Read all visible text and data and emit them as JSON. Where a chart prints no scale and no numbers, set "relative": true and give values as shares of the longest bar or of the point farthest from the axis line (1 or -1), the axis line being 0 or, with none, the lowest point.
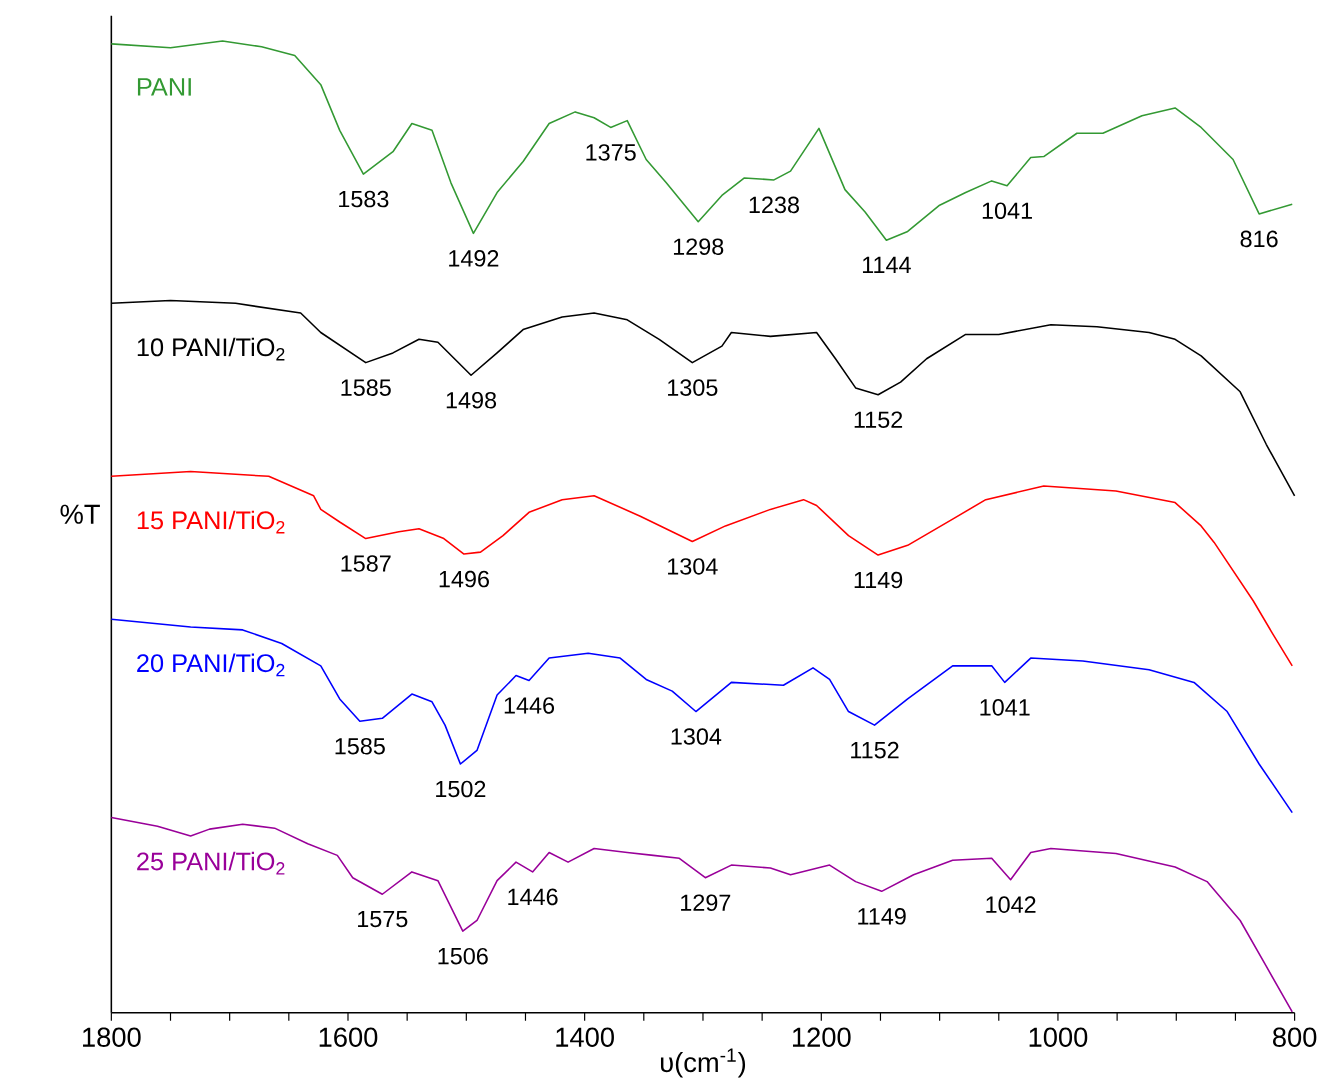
{
  "chart_data": {
    "type": "line",
    "xlabel": "υ(cm$^{-1}$)",
    "ylabel": "%T",
    "relative": true,
    "xlim": [
      1800,
      800
    ],
    "xticks": [
      1800,
      {
        "value": 1750,
        "label": null
      },
      {
        "value": 1700,
        "label": null
      },
      {
        "value": 1650,
        "label": null
      },
      1600,
      {
        "value": 1550,
        "label": null
      },
      {
        "value": 1500,
        "label": null
      },
      {
        "value": 1450,
        "label": null
      },
      1400,
      {
        "value": 1350,
        "label": null
      },
      {
        "value": 1300,
        "label": null
      },
      {
        "value": 1250,
        "label": null
      },
      1200,
      {
        "value": 1150,
        "label": null
      },
      {
        "value": 1100,
        "label": null
      },
      {
        "value": 1050,
        "label": null
      },
      1000,
      {
        "value": 950,
        "label": null
      },
      {
        "value": 900,
        "label": null
      },
      {
        "value": 850,
        "label": null
      },
      800
    ],
    "grid": false,
    "marker": "none",
    "line_style": "solid",
    "series": [
      {
        "name": "PANI",
        "color": "#339933",
        "x": [
          1800,
          1750,
          1706,
          1673,
          1645,
          1623,
          1607,
          1587,
          1562,
          1546,
          1529,
          1513,
          1494,
          1474,
          1452,
          1430,
          1408,
          1392,
          1378,
          1364,
          1348,
          1331,
          1304,
          1284,
          1265,
          1240,
          1226,
          1202,
          1180,
          1163,
          1145,
          1127,
          1100,
          1078,
          1056,
          1043,
          1023,
          1012,
          984,
          962,
          929,
          901,
          879,
          852,
          830,
          802
        ],
        "values": [
          0.997,
          0.993,
          1,
          0.994,
          0.985,
          0.955,
          0.908,
          0.863,
          0.886,
          0.915,
          0.908,
          0.854,
          0.802,
          0.844,
          0.876,
          0.915,
          0.927,
          0.921,
          0.911,
          0.918,
          0.878,
          0.854,
          0.814,
          0.841,
          0.859,
          0.857,
          0.866,
          0.91,
          0.847,
          0.824,
          0.795,
          0.804,
          0.831,
          0.844,
          0.856,
          0.851,
          0.88,
          0.881,
          0.905,
          0.905,
          0.923,
          0.931,
          0.911,
          0.878,
          0.822,
          0.832
        ]
      },
      {
        "name": "10 PANI/TiO$_{2}$",
        "color": "#000000",
        "x": [
          1800,
          1750,
          1695,
          1640,
          1623,
          1585,
          1562,
          1540,
          1524,
          1496,
          1474,
          1452,
          1419,
          1392,
          1364,
          1337,
          1309,
          1284,
          1276,
          1243,
          1204,
          1188,
          1171,
          1152,
          1133,
          1111,
          1078,
          1050,
          1006,
          967,
          923,
          901,
          879,
          846,
          824,
          800
        ],
        "values": [
          0.73,
          0.733,
          0.73,
          0.72,
          0.7,
          0.669,
          0.679,
          0.693,
          0.69,
          0.656,
          0.679,
          0.703,
          0.716,
          0.72,
          0.713,
          0.693,
          0.669,
          0.686,
          0.7,
          0.696,
          0.7,
          0.673,
          0.643,
          0.636,
          0.649,
          0.673,
          0.698,
          0.698,
          0.708,
          0.706,
          0.7,
          0.693,
          0.676,
          0.639,
          0.585,
          0.532
        ]
      },
      {
        "name": "15 PANI/TiO$_{2}$",
        "color": "#ff0000",
        "x": [
          1800,
          1733,
          1667,
          1629,
          1623,
          1607,
          1585,
          1557,
          1540,
          1519,
          1502,
          1488,
          1469,
          1447,
          1419,
          1392,
          1353,
          1309,
          1281,
          1243,
          1215,
          1204,
          1177,
          1152,
          1127,
          1089,
          1061,
          1012,
          951,
          901,
          879,
          868,
          835,
          819,
          802
        ],
        "values": [
          0.552,
          0.557,
          0.552,
          0.532,
          0.518,
          0.505,
          0.488,
          0.495,
          0.498,
          0.488,
          0.472,
          0.474,
          0.491,
          0.515,
          0.528,
          0.532,
          0.511,
          0.485,
          0.501,
          0.518,
          0.528,
          0.522,
          0.491,
          0.471,
          0.481,
          0.508,
          0.528,
          0.542,
          0.537,
          0.525,
          0.501,
          0.484,
          0.424,
          0.391,
          0.357
        ]
      },
      {
        "name": "20 PANI/TiO$_{2}$",
        "color": "#0000ff",
        "x": [
          1800,
          1733,
          1689,
          1656,
          1623,
          1607,
          1590,
          1571,
          1546,
          1529,
          1518,
          1505,
          1491,
          1474,
          1458,
          1447,
          1430,
          1397,
          1370,
          1348,
          1326,
          1306,
          1276,
          1232,
          1207,
          1193,
          1177,
          1155,
          1127,
          1089,
          1056,
          1045,
          1023,
          979,
          923,
          885,
          857,
          830,
          802
        ],
        "values": [
          0.405,
          0.397,
          0.394,
          0.38,
          0.357,
          0.323,
          0.3,
          0.303,
          0.328,
          0.32,
          0.296,
          0.256,
          0.27,
          0.327,
          0.347,
          0.342,
          0.365,
          0.37,
          0.365,
          0.343,
          0.331,
          0.31,
          0.34,
          0.337,
          0.355,
          0.343,
          0.31,
          0.296,
          0.323,
          0.357,
          0.357,
          0.34,
          0.365,
          0.362,
          0.353,
          0.34,
          0.31,
          0.256,
          0.206
        ]
      },
      {
        "name": "25 PANI/TiO$_{2}$",
        "color": "#990099",
        "x": [
          1800,
          1761,
          1733,
          1717,
          1689,
          1662,
          1634,
          1609,
          1596,
          1571,
          1546,
          1524,
          1503,
          1491,
          1474,
          1458,
          1444,
          1430,
          1414,
          1392,
          1364,
          1342,
          1320,
          1298,
          1276,
          1243,
          1226,
          1193,
          1171,
          1149,
          1122,
          1089,
          1056,
          1040,
          1023,
          1006,
          951,
          901,
          874,
          846,
          824,
          802
        ],
        "values": [
          0.201,
          0.192,
          0.182,
          0.189,
          0.194,
          0.19,
          0.174,
          0.162,
          0.139,
          0.122,
          0.145,
          0.136,
          0.084,
          0.095,
          0.136,
          0.155,
          0.145,
          0.165,
          0.155,
          0.169,
          0.165,
          0.162,
          0.159,
          0.139,
          0.152,
          0.149,
          0.142,
          0.152,
          0.135,
          0.125,
          0.142,
          0.157,
          0.159,
          0.137,
          0.165,
          0.169,
          0.164,
          0.15,
          0.135,
          0.095,
          0.048,
          0.001
        ]
      }
    ],
    "annotations": [
      {
        "text": "1583",
        "x": 1587,
        "y": 0.863
      },
      {
        "text": "1492",
        "x": 1494,
        "y": 0.802
      },
      {
        "text": "1375",
        "x": 1378,
        "y": 0.911
      },
      {
        "text": "1298",
        "x": 1304,
        "y": 0.814
      },
      {
        "text": "1238",
        "x": 1240,
        "y": 0.857
      },
      {
        "text": "1144",
        "x": 1145,
        "y": 0.795
      },
      {
        "text": "1041",
        "x": 1043,
        "y": 0.851
      },
      {
        "text": "816",
        "x": 830,
        "y": 0.822
      },
      {
        "text": "1585",
        "x": 1585,
        "y": 0.669
      },
      {
        "text": "1498",
        "x": 1496,
        "y": 0.656
      },
      {
        "text": "1305",
        "x": 1309,
        "y": 0.669
      },
      {
        "text": "1152",
        "x": 1152,
        "y": 0.636
      },
      {
        "text": "1587",
        "x": 1585,
        "y": 0.488
      },
      {
        "text": "1496",
        "x": 1502,
        "y": 0.472
      },
      {
        "text": "1304",
        "x": 1309,
        "y": 0.485
      },
      {
        "text": "1149",
        "x": 1152,
        "y": 0.471
      },
      {
        "text": "1585",
        "x": 1590,
        "y": 0.3
      },
      {
        "text": "1502",
        "x": 1505,
        "y": 0.256
      },
      {
        "text": "1446",
        "x": 1447,
        "y": 0.342
      },
      {
        "text": "1304",
        "x": 1306,
        "y": 0.31
      },
      {
        "text": "1152",
        "x": 1155,
        "y": 0.296
      },
      {
        "text": "1041",
        "x": 1045,
        "y": 0.34
      },
      {
        "text": "1575",
        "x": 1571,
        "y": 0.122
      },
      {
        "text": "1506",
        "x": 1503,
        "y": 0.084
      },
      {
        "text": "1446",
        "x": 1444,
        "y": 0.145
      },
      {
        "text": "1297",
        "x": 1298,
        "y": 0.139
      },
      {
        "text": "1149",
        "x": 1149,
        "y": 0.125
      },
      {
        "text": "1042",
        "x": 1040,
        "y": 0.137
      }
    ]
  }
}
